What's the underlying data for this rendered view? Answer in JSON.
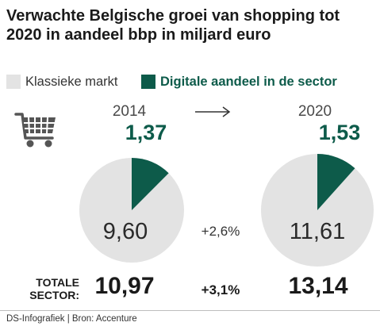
{
  "colors": {
    "classic": "#e3e3e3",
    "digital": "#0d5b4a",
    "text": "#1a1a1a"
  },
  "icons": {
    "cart": "shopping-cart-icon",
    "arrow": "right-arrow-icon"
  },
  "chart_data": {
    "type": "pie",
    "title": "Verwachte Belgische groei van shopping tot 2020 in aandeel bbp in miljard euro",
    "legend": [
      "Klassieke markt",
      "Digitale aandeel in de sector"
    ],
    "years": [
      "2014",
      "2020"
    ],
    "series": [
      {
        "name": "Klassieke markt",
        "values": [
          9.6,
          11.61
        ],
        "labels": [
          "9,60",
          "11,61"
        ]
      },
      {
        "name": "Digitale aandeel in de sector",
        "values": [
          1.37,
          1.53
        ],
        "labels": [
          "1,37",
          "1,53"
        ]
      }
    ],
    "growth_label": "+2,6%",
    "total_label": "TOTALE SECTOR:",
    "totals": [
      "10,97",
      "13,14"
    ],
    "total_growth_label": "+3,1%"
  },
  "footer": {
    "source": "DS-Infografiek | Bron: Accenture"
  }
}
